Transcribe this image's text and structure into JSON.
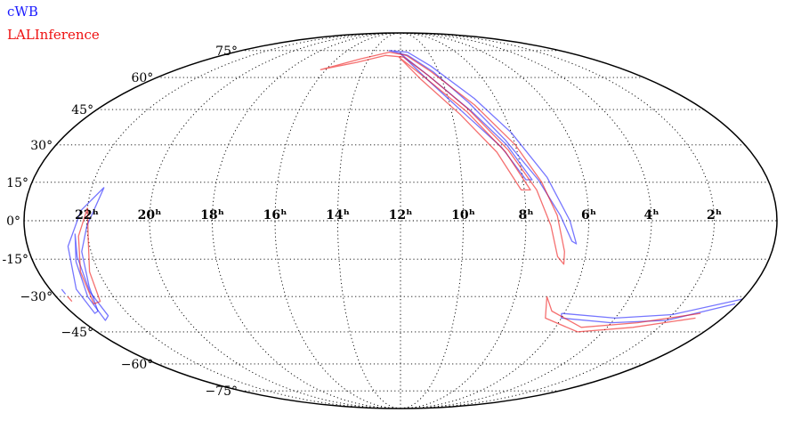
{
  "chart_data": {
    "type": "scatter",
    "projection": "mollweide",
    "grid": true,
    "legend_position": "top-left",
    "ra_ticks": [
      {
        "hours": 22,
        "label": "22ʰ"
      },
      {
        "hours": 20,
        "label": "20ʰ"
      },
      {
        "hours": 18,
        "label": "18ʰ"
      },
      {
        "hours": 16,
        "label": "16ʰ"
      },
      {
        "hours": 14,
        "label": "14ʰ"
      },
      {
        "hours": 12,
        "label": "12ʰ"
      },
      {
        "hours": 10,
        "label": "10ʰ"
      },
      {
        "hours": 8,
        "label": "8ʰ"
      },
      {
        "hours": 6,
        "label": "6ʰ"
      },
      {
        "hours": 4,
        "label": "4ʰ"
      },
      {
        "hours": 2,
        "label": "2ʰ"
      }
    ],
    "dec_ticks": [
      {
        "deg": 75,
        "label": "75°"
      },
      {
        "deg": 60,
        "label": "60°"
      },
      {
        "deg": 45,
        "label": "45°"
      },
      {
        "deg": 30,
        "label": "30°"
      },
      {
        "deg": 15,
        "label": "15°"
      },
      {
        "deg": 0,
        "label": "0°"
      },
      {
        "deg": -15,
        "label": "-15°"
      },
      {
        "deg": -30,
        "label": "−30°"
      },
      {
        "deg": -45,
        "label": "−45°"
      },
      {
        "deg": -60,
        "label": "−60°"
      },
      {
        "deg": -75,
        "label": "−75°"
      }
    ],
    "series": [
      {
        "name": "cWB",
        "color": "#1a1aff",
        "contours": [
          [
            [
              12.9,
              75
            ],
            [
              11.5,
              74
            ],
            [
              10.3,
              66
            ],
            [
              8.9,
              50
            ],
            [
              8.0,
              35
            ],
            [
              7.2,
              17
            ],
            [
              6.6,
              0
            ],
            [
              6.35,
              -9
            ],
            [
              6.5,
              -8
            ],
            [
              6.9,
              2
            ],
            [
              7.5,
              16
            ],
            [
              8.3,
              32
            ],
            [
              9.2,
              48
            ],
            [
              10.3,
              63
            ],
            [
              11.5,
              72
            ],
            [
              12.9,
              75
            ]
          ],
          [
            [
              12.0,
              73
            ],
            [
              10.6,
              61
            ],
            [
              9.2,
              44
            ],
            [
              8.3,
              30
            ],
            [
              7.7,
              16
            ],
            [
              7.9,
              16
            ],
            [
              8.5,
              29
            ],
            [
              9.5,
              43
            ],
            [
              10.7,
              59
            ],
            [
              12.0,
              73
            ]
          ],
          [
            [
              21.6,
              13
            ],
            [
              22.2,
              4
            ],
            [
              22.7,
              -10
            ],
            [
              23.1,
              -27
            ],
            [
              23.2,
              -37
            ],
            [
              23.0,
              -36
            ],
            [
              22.6,
              -26
            ],
            [
              22.3,
              -12
            ],
            [
              22.0,
              -2
            ],
            [
              21.6,
              13
            ]
          ],
          [
            [
              22.4,
              -5
            ],
            [
              22.6,
              -16
            ],
            [
              22.9,
              -30
            ],
            [
              23.1,
              -40
            ],
            [
              22.8,
              -38
            ],
            [
              22.7,
              -28
            ],
            [
              22.5,
              -14
            ],
            [
              22.4,
              -5
            ]
          ],
          [
            [
              6.1,
              -37
            ],
            [
              4.0,
              -39
            ],
            [
              2.0,
              -37.5
            ],
            [
              0.0,
              -31
            ],
            [
              23.6,
              -27
            ],
            [
              23.6,
              -29
            ],
            [
              0.1,
              -33
            ],
            [
              2.0,
              -40
            ],
            [
              4.0,
              -41
            ],
            [
              6.0,
              -39
            ],
            [
              6.1,
              -37
            ]
          ]
        ]
      },
      {
        "name": "LALInference",
        "color": "#ee1111",
        "contours": [
          [
            [
              16.3,
              64
            ],
            [
              14.5,
              70
            ],
            [
              12.8,
              74
            ],
            [
              11.6,
              72
            ],
            [
              10.4,
              63
            ],
            [
              9.0,
              47
            ],
            [
              8.0,
              30
            ],
            [
              7.4,
              15
            ],
            [
              7.0,
              2
            ],
            [
              6.7,
              -12
            ],
            [
              6.65,
              -17
            ],
            [
              6.9,
              -14
            ],
            [
              7.2,
              -2
            ],
            [
              7.6,
              12
            ],
            [
              8.3,
              28
            ],
            [
              9.3,
              45
            ],
            [
              10.6,
              61
            ],
            [
              11.8,
              71
            ],
            [
              13.0,
              72
            ],
            [
              14.6,
              68
            ],
            [
              16.3,
              64
            ]
          ],
          [
            [
              12.1,
              71
            ],
            [
              10.8,
              60
            ],
            [
              9.4,
              44
            ],
            [
              8.4,
              27
            ],
            [
              7.8,
              12
            ],
            [
              8.1,
              12
            ],
            [
              8.7,
              27
            ],
            [
              9.7,
              43
            ],
            [
              11.0,
              59
            ],
            [
              12.1,
              71
            ]
          ],
          [
            [
              22.0,
              5
            ],
            [
              22.3,
              -6
            ],
            [
              22.6,
              -20
            ],
            [
              22.9,
              -33
            ],
            [
              22.6,
              -32
            ],
            [
              22.3,
              -20
            ],
            [
              22.0,
              -7
            ],
            [
              22.0,
              5
            ]
          ],
          [
            [
              6.9,
              -30
            ],
            [
              6.5,
              -36
            ],
            [
              5.0,
              -43
            ],
            [
              3.0,
              -41
            ],
            [
              1.0,
              -37
            ],
            [
              23.6,
              -30
            ],
            [
              23.6,
              -32
            ],
            [
              1.0,
              -39
            ],
            [
              3.0,
              -43
            ],
            [
              5.0,
              -45
            ],
            [
              6.6,
              -39
            ],
            [
              6.9,
              -30
            ]
          ]
        ]
      }
    ]
  }
}
